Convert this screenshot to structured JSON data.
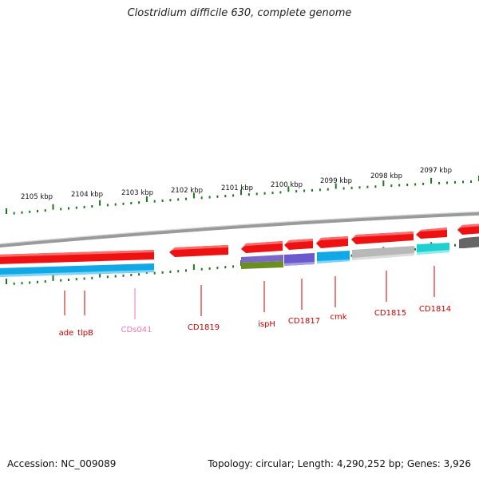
{
  "title": "Clostridium difficile 630, complete genome",
  "footer": {
    "accession": "Accession: NC_009089",
    "stats": "Topology: circular; Length: 4,290,252 bp; Genes: 3,926"
  },
  "colors": {
    "forward_strand": "#ee1111",
    "reverse_strand": "#11a8e8",
    "backbone": "#8c8c8c",
    "scale_ticks": "#1a7a1a",
    "gene_label": "#cc0000",
    "pseudogene_label": "#e87ab0"
  },
  "scale": {
    "unit": "kbp",
    "labels": [
      "2105 kbp",
      "2104 kbp",
      "2103 kbp",
      "2102 kbp",
      "2101 kbp",
      "2100 kbp",
      "2099 kbp",
      "2098 kbp",
      "2097 kbp"
    ]
  },
  "genes": [
    {
      "name": "ade",
      "strand": "reverse",
      "color": "#11a8e8"
    },
    {
      "name": "tlpB",
      "strand": "reverse",
      "color": "#11a8e8"
    },
    {
      "name": "CDs041",
      "strand": "reverse",
      "color": "#11a8e8",
      "pseudo": true
    },
    {
      "name": "CD1819",
      "strand": "forward",
      "color": "#ee1111"
    },
    {
      "name": "ispH",
      "strand": "reverse",
      "color": "#6b8e23"
    },
    {
      "name": "CD1817",
      "strand": "reverse",
      "color": "#6a5acd"
    },
    {
      "name": "cmk",
      "strand": "reverse",
      "color": "#11a8e8"
    },
    {
      "name": "CD1815",
      "strand": "reverse",
      "color": "#b8b8b8"
    },
    {
      "name": "CD1814",
      "strand": "reverse",
      "color": "#20d0d0"
    }
  ]
}
